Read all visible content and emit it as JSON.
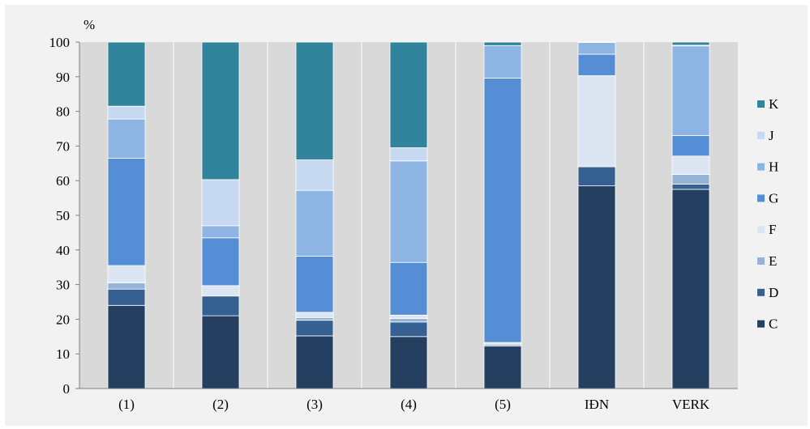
{
  "chart_data": {
    "type": "bar",
    "stacked": true,
    "unit_label": "%",
    "ylim": [
      0,
      100
    ],
    "yticks": [
      0,
      10,
      20,
      30,
      40,
      50,
      60,
      70,
      80,
      90,
      100
    ],
    "grid": "vertical-only",
    "legend_position": "right",
    "categories": [
      "(1)",
      "(2)",
      "(3)",
      "(4)",
      "(5)",
      "IÐN",
      "VERK"
    ],
    "series": [
      {
        "name": "C",
        "color": "#243f60",
        "values": [
          24.0,
          21.0,
          15.2,
          15.0,
          12.3,
          58.5,
          57.5
        ]
      },
      {
        "name": "D",
        "color": "#376092",
        "values": [
          4.7,
          5.7,
          4.5,
          4.2,
          0.0,
          5.5,
          1.5
        ]
      },
      {
        "name": "E",
        "color": "#95b3d7",
        "values": [
          1.8,
          0.0,
          0.8,
          1.0,
          0.5,
          0.0,
          2.8
        ]
      },
      {
        "name": "F",
        "color": "#dce6f2",
        "values": [
          5.0,
          3.0,
          1.5,
          1.0,
          0.5,
          26.3,
          5.3
        ]
      },
      {
        "name": "G",
        "color": "#558ed5",
        "values": [
          31.0,
          13.8,
          16.2,
          15.2,
          76.3,
          6.2,
          5.9
        ]
      },
      {
        "name": "H",
        "color": "#8eb4e3",
        "values": [
          11.3,
          3.5,
          19.0,
          29.3,
          9.4,
          3.4,
          25.9
        ]
      },
      {
        "name": "J",
        "color": "#c6d9f1",
        "values": [
          3.7,
          13.3,
          8.8,
          3.8,
          0.0,
          0.2,
          0.2
        ]
      },
      {
        "name": "K",
        "color": "#31849b",
        "values": [
          18.5,
          39.7,
          34.0,
          30.5,
          1.0,
          0.0,
          0.9
        ]
      }
    ]
  }
}
